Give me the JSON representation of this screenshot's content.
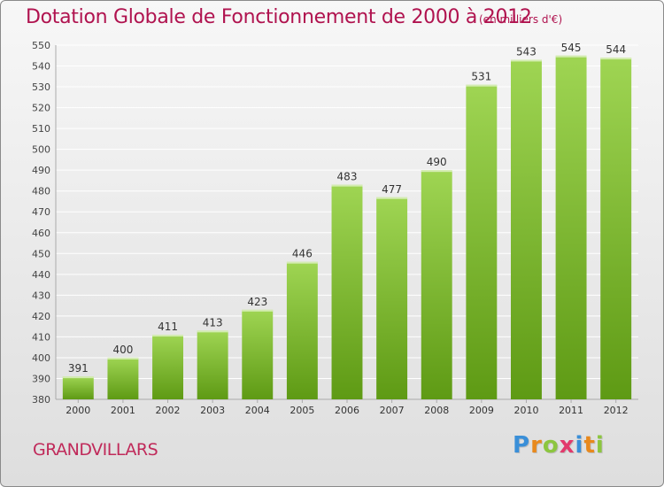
{
  "header": {
    "title": "Dotation Globale de Fonctionnement de 2000 à 2012",
    "unit": "(en milliers d'€)"
  },
  "footer": {
    "commune": "GRANDVILLARS",
    "brand_letters": [
      "P",
      "r",
      "o",
      "x",
      "i",
      "t",
      "i"
    ],
    "brand_colors": [
      "#3a8fd8",
      "#e8891d",
      "#8cc63f",
      "#e23a6c",
      "#3a8fd8",
      "#e8891d",
      "#8cc63f"
    ]
  },
  "colors": {
    "bar_top": "#9fd553",
    "bar_bottom": "#5e9a14",
    "title": "#b0134f",
    "grid": "#ffffff"
  },
  "chart_data": {
    "type": "bar",
    "categories": [
      "2000",
      "2001",
      "2002",
      "2003",
      "2004",
      "2005",
      "2006",
      "2007",
      "2008",
      "2009",
      "2010",
      "2011",
      "2012"
    ],
    "values": [
      391,
      400,
      411,
      413,
      423,
      446,
      483,
      477,
      490,
      531,
      543,
      545,
      544
    ],
    "ylim": [
      380,
      550
    ],
    "yticks": [
      380,
      390,
      400,
      410,
      420,
      430,
      440,
      450,
      460,
      470,
      480,
      490,
      500,
      510,
      520,
      530,
      540,
      550
    ],
    "grid": true,
    "data_labels": true
  }
}
